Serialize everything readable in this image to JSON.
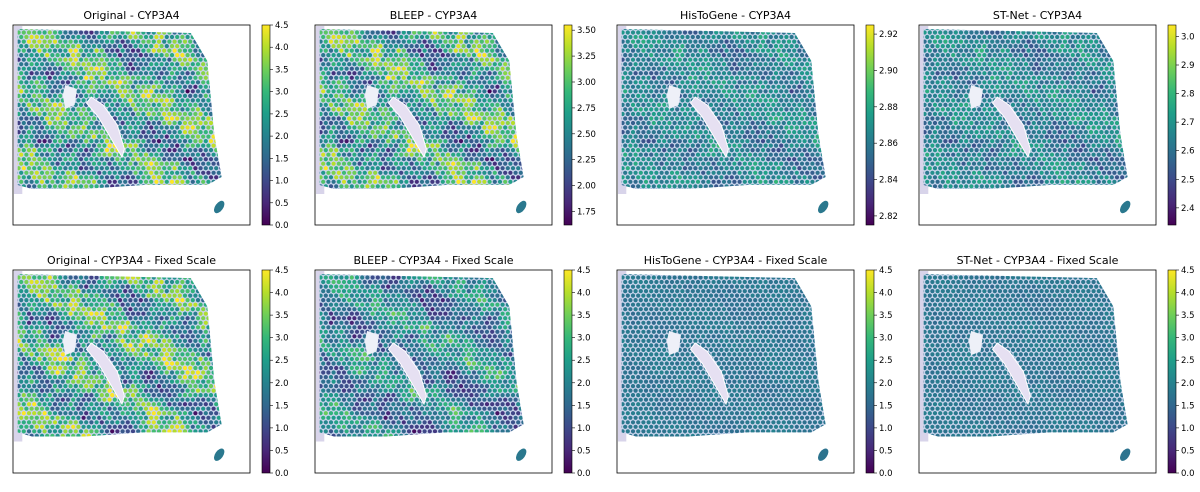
{
  "figure": {
    "colormap": "viridis",
    "colormap_stops": [
      "#440154",
      "#482878",
      "#3e4989",
      "#31688e",
      "#26828e",
      "#1f9e89",
      "#35b779",
      "#6ece58",
      "#b5de2b",
      "#fde725"
    ],
    "tissue_color": "#c9d4ec",
    "background_color": "#ffffff"
  },
  "chart_data": [
    {
      "type": "heatmap",
      "title": "Original - CYP3A4",
      "colorbar_ticks": [
        "0.0",
        "0.5",
        "1.0",
        "1.5",
        "2.0",
        "2.5",
        "3.0",
        "3.5",
        "4.0",
        "4.5"
      ],
      "clim": [
        0.0,
        4.5
      ],
      "pattern": "strong"
    },
    {
      "type": "heatmap",
      "title": "BLEEP - CYP3A4",
      "colorbar_ticks": [
        "1.75",
        "2.00",
        "2.25",
        "2.50",
        "2.75",
        "3.00",
        "3.25",
        "3.50"
      ],
      "clim": [
        1.62,
        3.55
      ],
      "pattern": "strong"
    },
    {
      "type": "heatmap",
      "title": "HisToGene - CYP3A4",
      "colorbar_ticks": [
        "2.82",
        "2.84",
        "2.86",
        "2.88",
        "2.90",
        "2.92"
      ],
      "clim": [
        2.815,
        2.925
      ],
      "pattern": "weak"
    },
    {
      "type": "heatmap",
      "title": "ST-Net - CYP3A4",
      "colorbar_ticks": [
        "2.4",
        "2.5",
        "2.6",
        "2.7",
        "2.8",
        "2.9",
        "3.0"
      ],
      "clim": [
        2.34,
        3.04
      ],
      "pattern": "weak"
    },
    {
      "type": "heatmap",
      "title": "Original - CYP3A4 - Fixed Scale",
      "colorbar_ticks": [
        "0.0",
        "0.5",
        "1.0",
        "1.5",
        "2.0",
        "2.5",
        "3.0",
        "3.5",
        "4.0",
        "4.5"
      ],
      "clim": [
        0.0,
        4.5
      ],
      "pattern": "strong"
    },
    {
      "type": "heatmap",
      "title": "BLEEP - CYP3A4 - Fixed Scale",
      "colorbar_ticks": [
        "0.0",
        "0.5",
        "1.0",
        "1.5",
        "2.0",
        "2.5",
        "3.0",
        "3.5",
        "4.0",
        "4.5"
      ],
      "clim": [
        0.0,
        4.5
      ],
      "pattern": "medium"
    },
    {
      "type": "heatmap",
      "title": "HisToGene - CYP3A4 - Fixed Scale",
      "colorbar_ticks": [
        "0.0",
        "0.5",
        "1.0",
        "1.5",
        "2.0",
        "2.5",
        "3.0",
        "3.5",
        "4.0",
        "4.5"
      ],
      "clim": [
        0.0,
        4.5
      ],
      "pattern": "flat"
    },
    {
      "type": "heatmap",
      "title": "ST-Net - CYP3A4 - Fixed Scale",
      "colorbar_ticks": [
        "0.0",
        "0.5",
        "1.0",
        "1.5",
        "2.0",
        "2.5",
        "3.0",
        "3.5",
        "4.0",
        "4.5"
      ],
      "clim": [
        0.0,
        4.5
      ],
      "pattern": "flat"
    }
  ]
}
